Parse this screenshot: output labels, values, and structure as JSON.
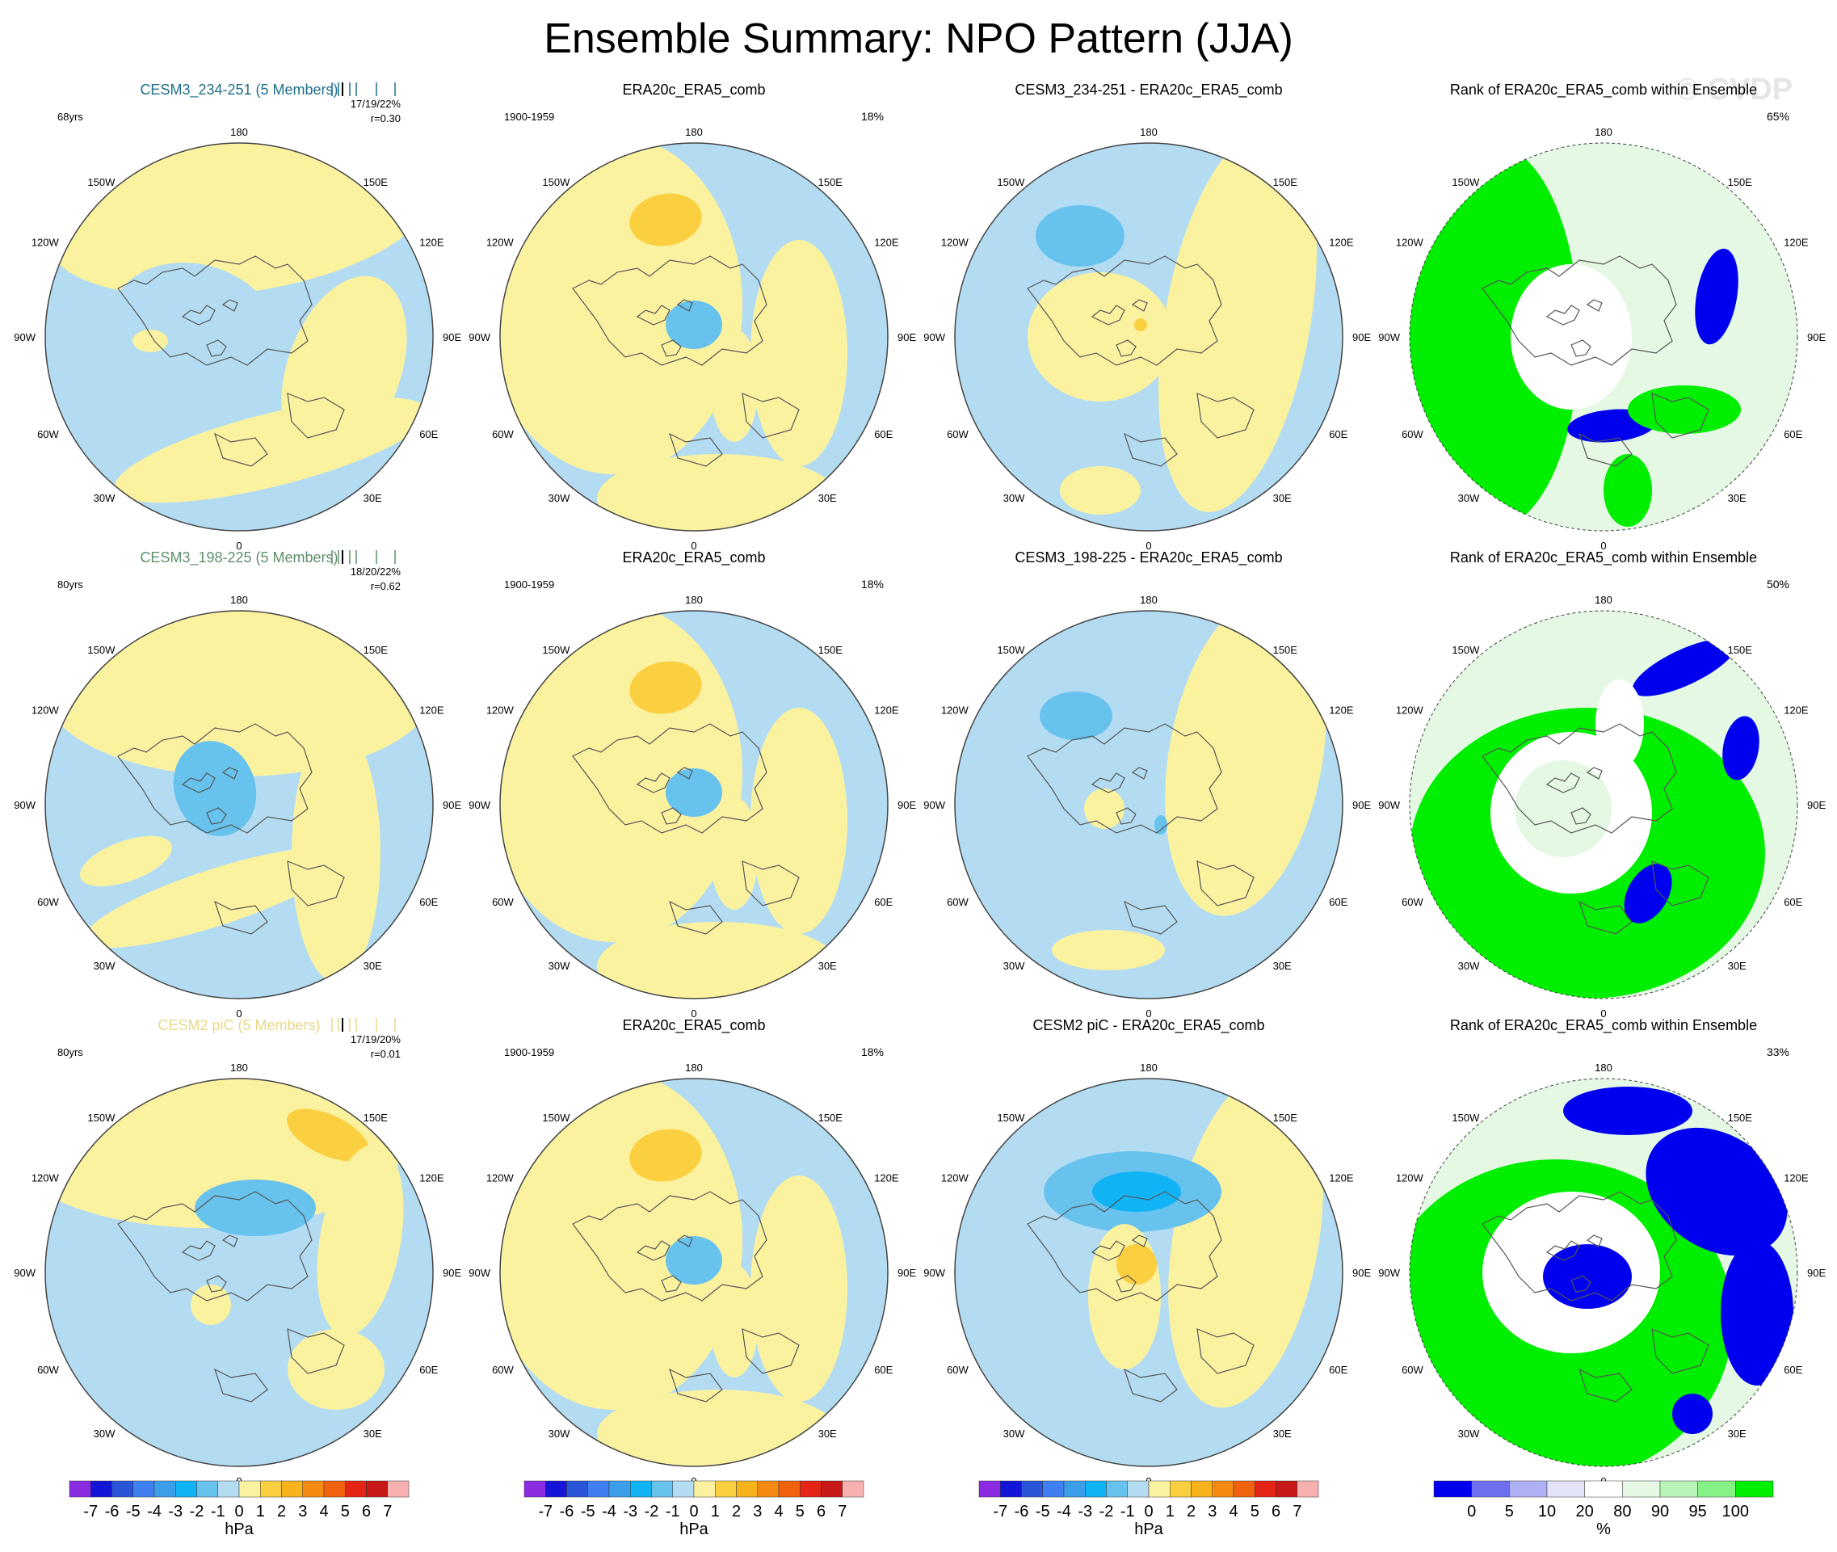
{
  "figure": {
    "title": "Ensemble Summary: NPO Pattern (JJA)",
    "watermark": "© CVDP"
  },
  "chart_data": {
    "type": "polar-map-panels",
    "rows": [
      {
        "ensemble": {
          "title": "CESM3_234-251 (5 Members)",
          "color": "#1f6f8b",
          "years": "68yrs",
          "pct_range": "17/19/22%",
          "pattern_corr": "r=0.30"
        },
        "observed": {
          "title": "ERA20c_ERA5_comb",
          "period": "1900-1959",
          "pct": "18%"
        },
        "difference": {
          "title": "CESM3_234-251 - ERA20c_ERA5_comb"
        },
        "rank": {
          "title": "Rank of ERA20c_ERA5_comb within Ensemble",
          "pct": "65%"
        }
      },
      {
        "ensemble": {
          "title": "CESM3_198-225 (5 Members)",
          "color": "#5f8f6a",
          "years": "80yrs",
          "pct_range": "18/20/22%",
          "pattern_corr": "r=0.62"
        },
        "observed": {
          "title": "ERA20c_ERA5_comb",
          "period": "1900-1959",
          "pct": "18%"
        },
        "difference": {
          "title": "CESM3_198-225 - ERA20c_ERA5_comb"
        },
        "rank": {
          "title": "Rank of ERA20c_ERA5_comb within Ensemble",
          "pct": "50%"
        }
      },
      {
        "ensemble": {
          "title": "CESM2 piC (5 Members)",
          "color": "#e8d88a",
          "years": "80yrs",
          "pct_range": "17/19/20%",
          "pattern_corr": "r=0.01"
        },
        "observed": {
          "title": "ERA20c_ERA5_comb",
          "period": "1900-1959",
          "pct": "18%"
        },
        "difference": {
          "title": "CESM2 piC - ERA20c_ERA5_comb"
        },
        "rank": {
          "title": "Rank of ERA20c_ERA5_comb within Ensemble",
          "pct": "33%"
        }
      }
    ],
    "longitude_labels": [
      "180",
      "150E",
      "120E",
      "90E",
      "60E",
      "30E",
      "0",
      "30W",
      "60W",
      "90W",
      "120W",
      "150W"
    ],
    "colorbar_hpa": {
      "levels": [
        "-7",
        "-6",
        "-5",
        "-4",
        "-3",
        "-2",
        "-1",
        "0",
        "1",
        "2",
        "3",
        "4",
        "5",
        "6",
        "7"
      ],
      "colors": [
        "#8b2be2",
        "#1515d8",
        "#2b55d8",
        "#3f7ff0",
        "#3a9ee8",
        "#10b4f5",
        "#68c2ee",
        "#b3dcf2",
        "#fbf2a0",
        "#fbd040",
        "#f7b21c",
        "#f48a12",
        "#f0620e",
        "#e42414",
        "#c81818",
        "#f8b0b0"
      ],
      "unit": "hPa"
    },
    "colorbar_rank": {
      "levels": [
        "0",
        "5",
        "10",
        "20",
        "80",
        "90",
        "95",
        "100"
      ],
      "colors": [
        "#0000ee",
        "#6f6ff0",
        "#b0b0f4",
        "#e2e2f8",
        "#ffffff",
        "#e4f8e4",
        "#b8f4b8",
        "#86f286",
        "#00ee00"
      ],
      "unit": "%"
    },
    "field_colors": {
      "neg1": "#b3dcf2",
      "pos1": "#fbf2a0",
      "neg3": "#68c2ee",
      "neg5": "#10b4f5",
      "pos2": "#fbd040",
      "rank_hi": "#00ee00",
      "rank_lo": "#0000ee",
      "rank_mid": "#ffffff",
      "rank_light": "#e4f8e4"
    }
  }
}
